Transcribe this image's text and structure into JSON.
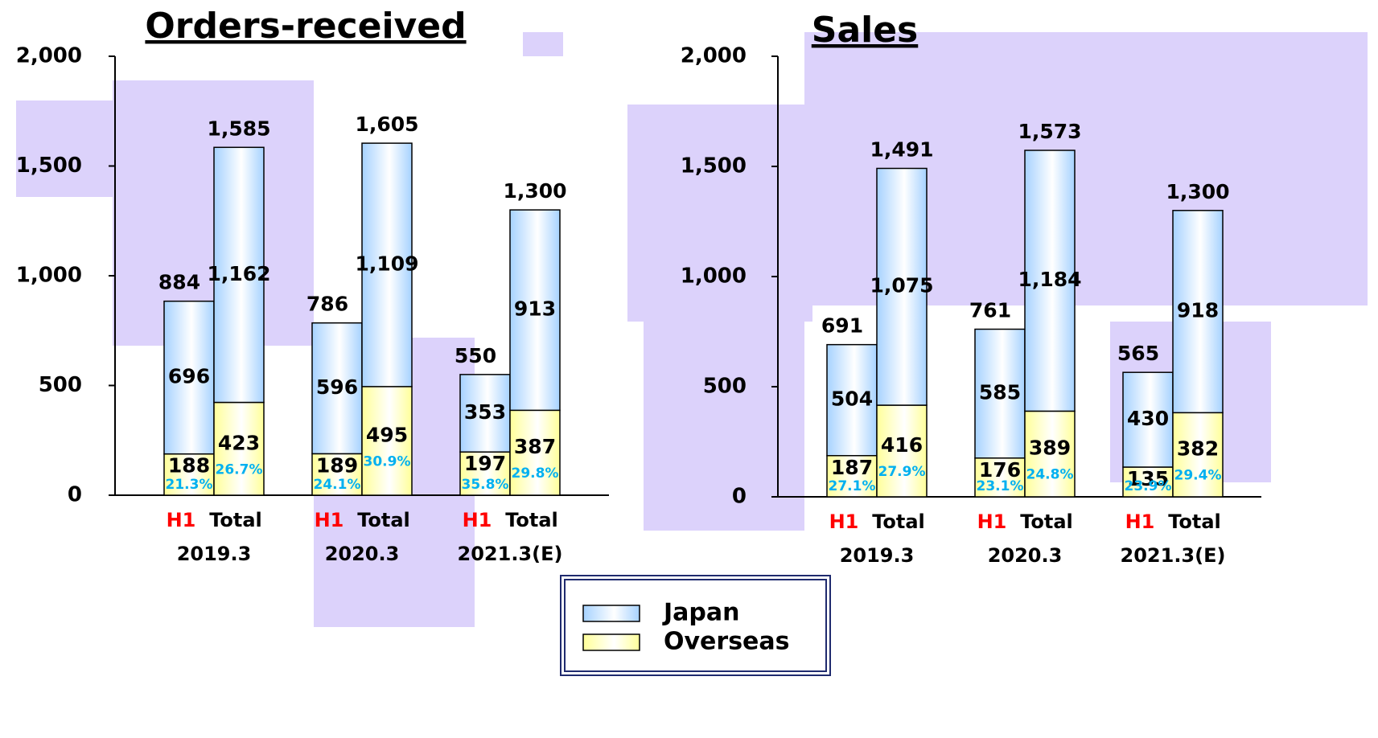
{
  "chart_data": [
    {
      "type": "bar",
      "stacked": true,
      "title": "Orders-received",
      "categories": [
        "H1",
        "Total",
        "H1",
        "Total",
        "H1",
        "Total"
      ],
      "groups": [
        "2019.3",
        "2020.3",
        "2021.3(E)"
      ],
      "series": [
        {
          "values": [
            696,
            1162,
            596,
            1109,
            353,
            913
          ],
          "value_labels": [
            "696",
            "1,162",
            "596",
            "1,109",
            "353",
            "913"
          ]
        },
        {
          "values": [
            188,
            423,
            189,
            495,
            197,
            387
          ]
        }
      ],
      "totals": [
        884,
        1585,
        786,
        1605,
        550,
        1300
      ],
      "total_labels": [
        "884",
        "1,585",
        "786",
        "1,605",
        "550",
        "1,300"
      ],
      "overseas_share": [
        21.3,
        26.7,
        24.1,
        30.9,
        35.8,
        29.8
      ],
      "overseas_share_labels": [
        "21.3%",
        "26.7%",
        "24.1%",
        "30.9%",
        "35.8%",
        "29.8%"
      ],
      "ylim": [
        0,
        2000
      ],
      "yticks": [
        0,
        500,
        {
          "value": 1000,
          "label": "1,000"
        },
        {
          "value": 1500,
          "label": "1,500"
        },
        {
          "value": 2000,
          "label": "2,000"
        }
      ]
    },
    {
      "type": "bar",
      "stacked": true,
      "title": "Sales",
      "categories": [
        "H1",
        "Total",
        "H1",
        "Total",
        "H1",
        "Total"
      ],
      "groups": [
        "2019.3",
        "2020.3",
        "2021.3(E)"
      ],
      "series": [
        {
          "values": [
            504,
            1075,
            585,
            1184,
            430,
            918
          ],
          "value_labels": [
            "504",
            "1,075",
            "585",
            "1,184",
            "430",
            "918"
          ]
        },
        {
          "values": [
            187,
            416,
            176,
            389,
            135,
            382
          ]
        }
      ],
      "totals": [
        691,
        1491,
        761,
        1573,
        565,
        1300
      ],
      "total_labels": [
        "691",
        "1,491",
        "761",
        "1,573",
        "565",
        "1,300"
      ],
      "overseas_share": [
        27.1,
        27.9,
        23.1,
        24.8,
        23.9,
        29.4
      ],
      "overseas_share_labels": [
        "27.1%",
        "27.9%",
        "23.1%",
        "24.8%",
        "23.9%",
        "29.4%"
      ],
      "ylim": [
        0,
        2000
      ],
      "yticks": [
        0,
        500,
        {
          "value": 1000,
          "label": "1,000"
        },
        {
          "value": 1500,
          "label": "1,500"
        },
        {
          "value": 2000,
          "label": "2,000"
        }
      ]
    }
  ],
  "legend": [
    {
      "name": "Japan",
      "color": "#a6d2ff"
    },
    {
      "name": "Overseas",
      "color": "#ffff99"
    }
  ]
}
